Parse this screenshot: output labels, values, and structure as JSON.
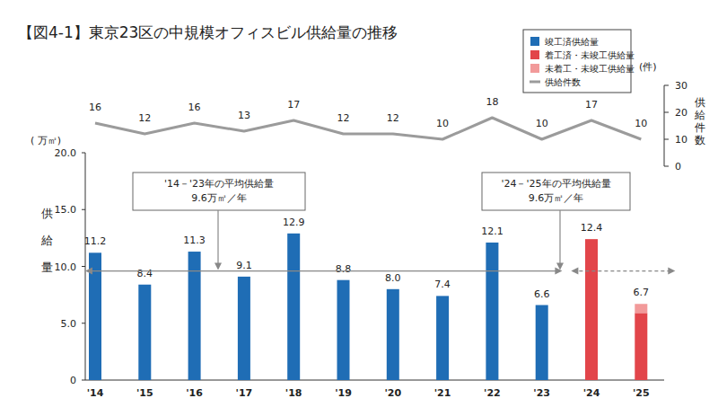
{
  "chart_data": {
    "type": "bar",
    "title": "【図4-1】東京23区の中規模オフィスビル供給量の推移",
    "y_label": "供給量",
    "y_unit": "( 万㎡)",
    "y2_label": "供給件数",
    "y2_unit": "(件)",
    "categories": [
      "'14",
      "'15",
      "'16",
      "'17",
      "'18",
      "'19",
      "'20",
      "'21",
      "'22",
      "'23",
      "'24",
      "'25"
    ],
    "stacked": true,
    "data_labels": true,
    "legend": "top-right",
    "grid": false,
    "ylim": [
      0,
      20
    ],
    "yticks": [
      0,
      {
        "value": 5,
        "label": "5.0"
      },
      {
        "value": 10,
        "label": "10.0"
      },
      {
        "value": 15,
        "label": "15.0"
      },
      {
        "value": 20,
        "label": "20.0"
      }
    ],
    "y2lim": [
      0,
      30
    ],
    "y2ticks": [
      0,
      10,
      20,
      30
    ],
    "totals": [
      11.2,
      8.4,
      11.3,
      9.1,
      12.9,
      8.8,
      8.0,
      7.4,
      12.1,
      6.6,
      12.4,
      6.7
    ],
    "total_labels": [
      "11.2",
      "8.4",
      "11.3",
      "9.1",
      "12.9",
      "8.8",
      "8.0",
      "7.4",
      "12.1",
      "6.6",
      "12.4",
      "6.7"
    ],
    "series": [
      {
        "name": "竣工済供給量",
        "type": "bar",
        "color": "#1f6db5",
        "values": [
          11.2,
          8.4,
          11.3,
          9.1,
          12.9,
          8.8,
          8.0,
          7.4,
          12.1,
          6.6,
          null,
          null
        ]
      },
      {
        "name": "着工済・未竣工供給量",
        "type": "bar",
        "color": "#e2454a",
        "values": [
          null,
          null,
          null,
          null,
          null,
          null,
          null,
          null,
          null,
          null,
          12.4,
          5.9
        ]
      },
      {
        "name": "未着工・未竣工供給量",
        "type": "bar",
        "color": "#f29a9a",
        "values": [
          null,
          null,
          null,
          null,
          null,
          null,
          null,
          null,
          null,
          null,
          null,
          0.8
        ]
      },
      {
        "name": "供給件数",
        "type": "line",
        "axis": "y2",
        "color": "#9b9b9b",
        "data_labels": true,
        "values": [
          16,
          12,
          16,
          13,
          17,
          12,
          12,
          10,
          18,
          10,
          17,
          10
        ]
      }
    ],
    "annotations": [
      {
        "text": [
          "'14－'23年の平均供給量",
          "9.6万㎡／年"
        ],
        "value": 9.6,
        "from": "'14",
        "to": "'23",
        "line_style": "solid"
      },
      {
        "text": [
          "'24－'25年の平均供給量",
          "9.6万㎡／年"
        ],
        "value": 9.6,
        "from": "'24",
        "to": "'25",
        "line_style": "dashed"
      }
    ]
  }
}
